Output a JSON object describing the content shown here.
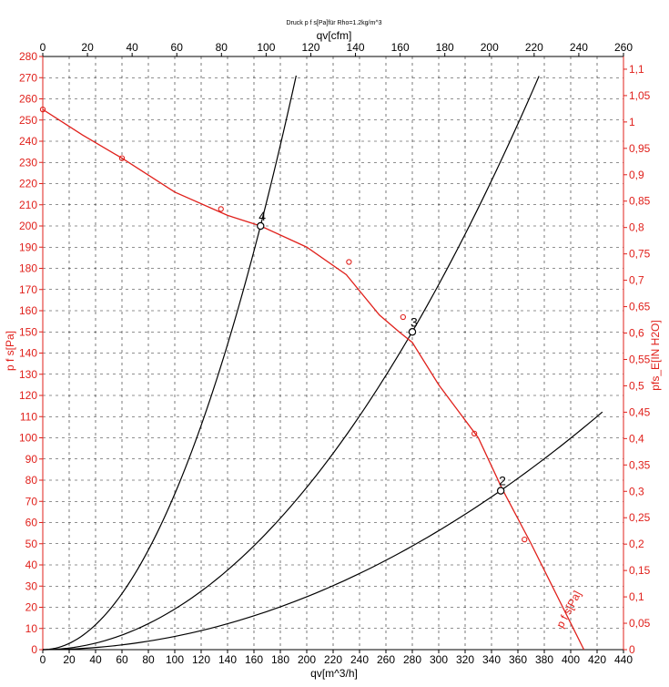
{
  "chart_data": {
    "type": "line",
    "title": "Druck p f s[Pa]für Rho=1.2kg/m^3",
    "xlabel_bottom": "qv[m^3/h]",
    "xlabel_top": "qv[cfm]",
    "ylabel_left": "p f s[Pa]",
    "ylabel_right": "pfs_E[IN H2O]",
    "x_bottom_range": [
      0,
      440
    ],
    "x_bottom_ticks": [
      0,
      20,
      40,
      60,
      80,
      100,
      120,
      140,
      160,
      180,
      200,
      220,
      240,
      260,
      280,
      300,
      320,
      340,
      360,
      380,
      400,
      420,
      440
    ],
    "x_top_range": [
      0,
      260
    ],
    "x_top_ticks": [
      0,
      20,
      40,
      60,
      80,
      100,
      120,
      140,
      160,
      180,
      200,
      220,
      240,
      260
    ],
    "y_left_range": [
      0,
      280
    ],
    "y_left_ticks": [
      0,
      10,
      20,
      30,
      40,
      50,
      60,
      70,
      80,
      90,
      100,
      110,
      120,
      130,
      140,
      150,
      160,
      170,
      180,
      190,
      200,
      210,
      220,
      230,
      240,
      250,
      260,
      270,
      280
    ],
    "y_right_ticks": [
      "0",
      "0,05",
      "0,1",
      "0,15",
      "0,2",
      "0,25",
      "0,3",
      "0,35",
      "0,4",
      "0,45",
      "0,5",
      "0,55",
      "0,6",
      "0,65",
      "0,7",
      "0,75",
      "0,8",
      "0,85",
      "0,9",
      "0,95",
      "1",
      "1,05",
      "1,1"
    ],
    "y_right_values": [
      0,
      0.05,
      0.1,
      0.15,
      0.2,
      0.25,
      0.3,
      0.35,
      0.4,
      0.45,
      0.5,
      0.55,
      0.6,
      0.65,
      0.7,
      0.75,
      0.8,
      0.85,
      0.9,
      0.95,
      1.0,
      1.05,
      1.1
    ],
    "grid": true,
    "fan_curve": {
      "name": "p f s[Pa]",
      "color": "#e0201b",
      "x": [
        0,
        30,
        60,
        100,
        140,
        165,
        200,
        230,
        255,
        270,
        280,
        300,
        330,
        348,
        370,
        390,
        410
      ],
      "y": [
        255,
        243,
        232,
        216,
        205,
        200,
        190,
        177,
        158,
        150,
        145,
        125,
        100,
        76,
        50,
        25,
        0
      ],
      "markers_x": [
        0,
        60,
        135,
        232,
        273,
        327,
        365
      ],
      "markers_y": [
        255,
        232,
        208,
        183,
        157,
        102,
        52
      ]
    },
    "system_curves": [
      {
        "id": "4",
        "color": "#000000",
        "k": 0.00735,
        "x_max": 192
      },
      {
        "id": "3",
        "color": "#000000",
        "k": 0.001915,
        "x_max": 376
      },
      {
        "id": "2",
        "color": "#000000",
        "k": 0.000624,
        "x_max": 424
      }
    ],
    "operating_points": [
      {
        "label": "4",
        "x": 165,
        "y": 200
      },
      {
        "label": "3",
        "x": 280,
        "y": 150
      },
      {
        "label": "2",
        "x": 347,
        "y": 75
      }
    ]
  }
}
